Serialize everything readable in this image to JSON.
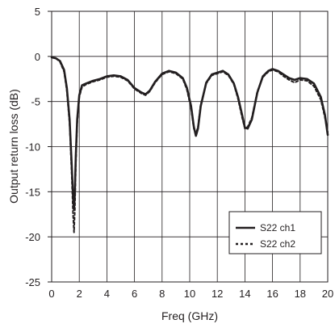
{
  "chart_data": {
    "type": "line",
    "title": "",
    "xlabel": "Freq (GHz)",
    "ylabel": "Output return loss (dB)",
    "xlim": [
      0,
      20
    ],
    "ylim": [
      -25,
      5
    ],
    "xticks": [
      0,
      2,
      4,
      6,
      8,
      10,
      12,
      14,
      16,
      18,
      20
    ],
    "yticks": [
      5,
      0,
      -5,
      -10,
      -15,
      -20,
      -25
    ],
    "grid": true,
    "legend_position": "bottom-right",
    "series": [
      {
        "name": "S22 ch1",
        "style": "solid",
        "color": "#231f20",
        "x": [
          0,
          0.3,
          0.6,
          0.9,
          1.1,
          1.3,
          1.45,
          1.55,
          1.62,
          1.68,
          1.75,
          1.85,
          2.0,
          2.2,
          2.5,
          3.0,
          3.5,
          4.0,
          4.5,
          5.0,
          5.5,
          6.0,
          6.5,
          6.8,
          7.1,
          7.5,
          8.0,
          8.5,
          9.0,
          9.5,
          9.8,
          10.1,
          10.3,
          10.45,
          10.6,
          10.8,
          11.2,
          11.6,
          12.0,
          12.4,
          12.8,
          13.2,
          13.5,
          13.8,
          14.0,
          14.2,
          14.5,
          14.9,
          15.3,
          15.7,
          16.0,
          16.4,
          16.8,
          17.2,
          17.6,
          18.0,
          18.5,
          19.0,
          19.5,
          19.8,
          20.0
        ],
        "y": [
          -0.1,
          -0.2,
          -0.5,
          -1.5,
          -3.5,
          -7.0,
          -12.0,
          -15.5,
          -17.0,
          -15.0,
          -11.0,
          -7.0,
          -4.3,
          -3.2,
          -3.0,
          -2.7,
          -2.5,
          -2.2,
          -2.1,
          -2.2,
          -2.6,
          -3.5,
          -4.0,
          -4.2,
          -3.8,
          -2.8,
          -1.9,
          -1.6,
          -1.8,
          -2.4,
          -3.5,
          -5.5,
          -7.8,
          -8.8,
          -8.0,
          -5.5,
          -2.9,
          -2.0,
          -1.8,
          -1.6,
          -2.0,
          -3.0,
          -4.5,
          -6.5,
          -7.9,
          -8.0,
          -7.0,
          -4.0,
          -2.2,
          -1.6,
          -1.4,
          -1.6,
          -2.0,
          -2.4,
          -2.6,
          -2.4,
          -2.5,
          -3.0,
          -4.5,
          -6.5,
          -8.7
        ]
      },
      {
        "name": "S22 ch2",
        "style": "dashed",
        "color": "#231f20",
        "x": [
          0,
          0.3,
          0.6,
          0.9,
          1.1,
          1.3,
          1.45,
          1.55,
          1.62,
          1.68,
          1.75,
          1.85,
          2.0,
          2.2,
          2.5,
          3.0,
          3.5,
          4.0,
          4.5,
          5.0,
          5.5,
          6.0,
          6.5,
          6.8,
          7.1,
          7.5,
          8.0,
          8.5,
          9.0,
          9.5,
          9.8,
          10.1,
          10.3,
          10.45,
          10.6,
          10.8,
          11.2,
          11.6,
          12.0,
          12.4,
          12.8,
          13.2,
          13.5,
          13.8,
          14.0,
          14.2,
          14.5,
          14.9,
          15.3,
          15.7,
          16.0,
          16.4,
          16.8,
          17.2,
          17.6,
          18.0,
          18.5,
          19.0,
          19.5,
          19.8,
          20.0
        ],
        "y": [
          -0.1,
          -0.2,
          -0.6,
          -1.7,
          -3.8,
          -7.5,
          -13.0,
          -17.5,
          -19.5,
          -17.0,
          -12.0,
          -7.5,
          -4.5,
          -3.4,
          -3.1,
          -2.8,
          -2.6,
          -2.3,
          -2.2,
          -2.3,
          -2.7,
          -3.6,
          -4.1,
          -4.3,
          -3.9,
          -2.9,
          -2.0,
          -1.7,
          -1.9,
          -2.5,
          -3.7,
          -5.8,
          -8.0,
          -8.6,
          -7.8,
          -5.3,
          -3.0,
          -2.1,
          -1.9,
          -1.7,
          -2.1,
          -3.1,
          -4.7,
          -6.8,
          -8.0,
          -7.8,
          -6.8,
          -3.9,
          -2.3,
          -1.7,
          -1.5,
          -1.7,
          -2.2,
          -2.6,
          -2.9,
          -2.6,
          -2.7,
          -3.3,
          -4.8,
          -6.8,
          -8.4
        ]
      }
    ]
  }
}
